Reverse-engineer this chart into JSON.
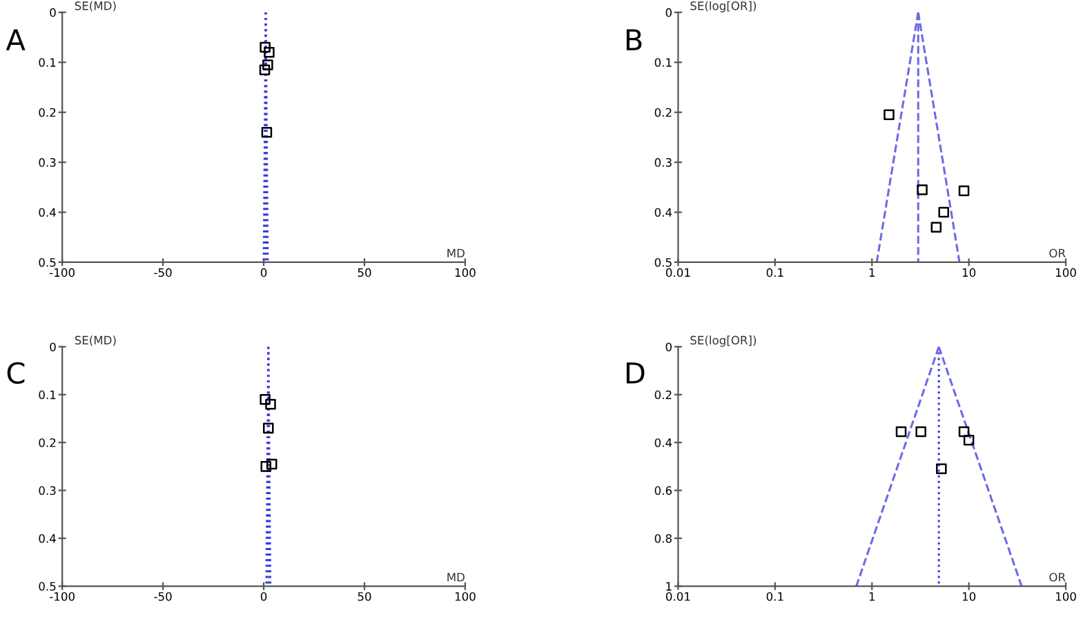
{
  "chart_data": [
    {
      "type": "scatter",
      "title": "A",
      "xlabel": "MD",
      "ylabel": "SE(MD)",
      "xlim": [
        -100,
        100
      ],
      "xticks": [
        -100,
        -50,
        0,
        50,
        100
      ],
      "ylim": [
        0.5,
        0
      ],
      "yticks": [
        0,
        0.1,
        0.2,
        0.3,
        0.4,
        0.5
      ],
      "grid": false,
      "legend": false,
      "series": [
        {
          "type": "scatter",
          "marker": "square",
          "color": "#000000",
          "x": [
            0.7,
            2.7,
            2,
            0.5,
            1.5
          ],
          "values": [
            0.07,
            0.08,
            0.105,
            0.115,
            0.24
          ]
        },
        {
          "type": "line",
          "marker": "none",
          "line_style": "dotted",
          "color": "#3a3ae0",
          "x": [
            1,
            1
          ],
          "values": [
            0,
            0.5
          ]
        },
        {
          "type": "line",
          "marker": "none",
          "line_style": "dotted",
          "color": "#3a3ae0",
          "x": [
            1,
            0.02
          ],
          "values": [
            0,
            0.5
          ]
        },
        {
          "type": "line",
          "marker": "none",
          "line_style": "dotted",
          "color": "#3a3ae0",
          "x": [
            1,
            1.98
          ],
          "values": [
            0,
            0.5
          ]
        }
      ]
    },
    {
      "type": "scatter",
      "title": "B",
      "xlabel": "OR",
      "ylabel": "SE(log[OR])",
      "log": "x",
      "xlim": [
        0.01,
        100
      ],
      "xticks": [
        0.01,
        0.1,
        1,
        10,
        100
      ],
      "ylim": [
        0.5,
        0
      ],
      "yticks": [
        0,
        0.1,
        0.2,
        0.3,
        0.4,
        0.5
      ],
      "grid": false,
      "legend": false,
      "series": [
        {
          "type": "scatter",
          "marker": "square",
          "color": "#000000",
          "x": [
            1.5,
            3.3,
            8.9,
            5.5,
            4.6
          ],
          "values": [
            0.205,
            0.355,
            0.357,
            0.4,
            0.43
          ]
        },
        {
          "type": "line",
          "marker": "none",
          "line_style": "dashed",
          "color": "#6a6ae8",
          "x": [
            3,
            3
          ],
          "values": [
            0,
            0.5
          ]
        },
        {
          "type": "line",
          "marker": "none",
          "line_style": "dashed",
          "color": "#6a6ae8",
          "x": [
            3,
            1.12
          ],
          "values": [
            0,
            0.5
          ]
        },
        {
          "type": "line",
          "marker": "none",
          "line_style": "dashed",
          "color": "#6a6ae8",
          "x": [
            3,
            8
          ],
          "values": [
            0,
            0.5
          ]
        }
      ]
    },
    {
      "type": "scatter",
      "title": "C",
      "xlabel": "MD",
      "ylabel": "SE(MD)",
      "xlim": [
        -100,
        100
      ],
      "xticks": [
        -100,
        -50,
        0,
        50,
        100
      ],
      "ylim": [
        0.5,
        0
      ],
      "yticks": [
        0,
        0.1,
        0.2,
        0.3,
        0.4,
        0.5
      ],
      "grid": false,
      "legend": false,
      "series": [
        {
          "type": "scatter",
          "marker": "square",
          "color": "#000000",
          "x": [
            0.7,
            3.4,
            2.3,
            1.1,
            4
          ],
          "values": [
            0.11,
            0.12,
            0.17,
            0.25,
            0.245
          ]
        },
        {
          "type": "line",
          "marker": "none",
          "line_style": "dotted",
          "color": "#3a3ae0",
          "x": [
            2.3,
            2.3
          ],
          "values": [
            0,
            0.5
          ]
        },
        {
          "type": "line",
          "marker": "none",
          "line_style": "dotted",
          "color": "#3a3ae0",
          "x": [
            2.3,
            1.32
          ],
          "values": [
            0,
            0.5
          ]
        },
        {
          "type": "line",
          "marker": "none",
          "line_style": "dotted",
          "color": "#3a3ae0",
          "x": [
            2.3,
            3.28
          ],
          "values": [
            0,
            0.5
          ]
        }
      ]
    },
    {
      "type": "scatter",
      "title": "D",
      "xlabel": "OR",
      "ylabel": "SE(log[OR])",
      "log": "x",
      "xlim": [
        0.01,
        100
      ],
      "xticks": [
        0.01,
        0.1,
        1,
        10,
        100
      ],
      "ylim": [
        1,
        0
      ],
      "yticks": [
        0,
        0.2,
        0.4,
        0.6,
        0.8,
        1
      ],
      "grid": false,
      "legend": false,
      "series": [
        {
          "type": "scatter",
          "marker": "square",
          "color": "#000000",
          "x": [
            2,
            3.2,
            8.9,
            10,
            5.2
          ],
          "values": [
            0.355,
            0.355,
            0.355,
            0.39,
            0.51
          ]
        },
        {
          "type": "line",
          "marker": "none",
          "line_style": "dotted",
          "color": "#3a3ae0",
          "x": [
            4.9,
            4.9
          ],
          "values": [
            0,
            1
          ]
        },
        {
          "type": "line",
          "marker": "none",
          "line_style": "dashed",
          "color": "#6a6ae8",
          "x": [
            4.9,
            0.69
          ],
          "values": [
            0,
            1
          ]
        },
        {
          "type": "line",
          "marker": "none",
          "line_style": "dashed",
          "color": "#6a6ae8",
          "x": [
            4.9,
            35
          ],
          "values": [
            0,
            1
          ]
        }
      ]
    }
  ]
}
